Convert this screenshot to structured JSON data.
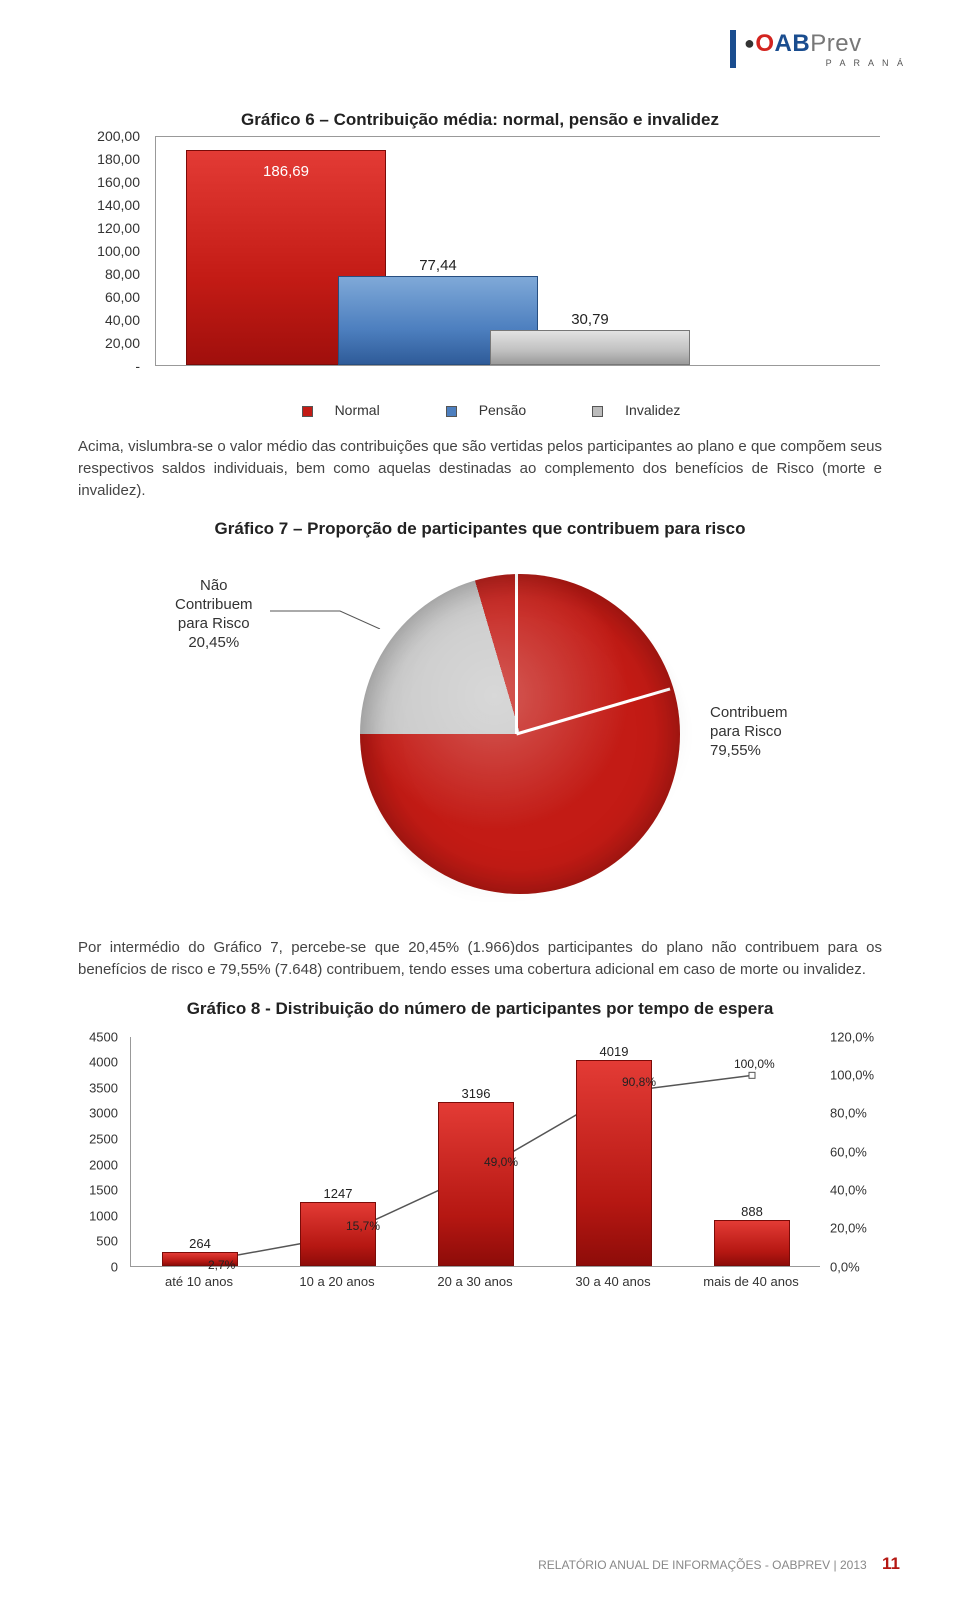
{
  "logo": {
    "brand_o": "O",
    "brand_ab": "AB",
    "brand_prev": "Prev",
    "sub": "P A R A N Á"
  },
  "chart6": {
    "type": "bar",
    "title": "Gráfico 6 – Contribuição média: normal, pensão e invalidez",
    "ylim": [
      0,
      200
    ],
    "ytick_step": 20,
    "y_ticks": [
      "200,00",
      "180,00",
      "160,00",
      "140,00",
      "120,00",
      "100,00",
      "80,00",
      "60,00",
      "40,00",
      "20,00",
      "-"
    ],
    "bars": [
      {
        "label": "Normal",
        "value": 186.69,
        "value_label": "186,69",
        "color": "#c31b15",
        "cls": "bar-red"
      },
      {
        "label": "Pensão",
        "value": 77.44,
        "value_label": "77,44",
        "color": "#4d7fbf",
        "cls": "bar-blue"
      },
      {
        "label": "Invalidez",
        "value": 30.79,
        "value_label": "30,79",
        "color": "#bcbcbc",
        "cls": "bar-grey"
      }
    ],
    "legend": [
      {
        "swatch": "lg-red",
        "label": "Normal"
      },
      {
        "swatch": "lg-blue",
        "label": "Pensão"
      },
      {
        "swatch": "lg-grey",
        "label": "Invalidez"
      }
    ]
  },
  "para1": "Acima, vislumbra-se o valor médio das contribuições que são vertidas pelos participantes ao plano e que compõem seus respectivos saldos individuais, bem como aquelas destinadas ao complemento dos benefícios de Risco (morte e invalidez).",
  "chart7": {
    "type": "pie",
    "title": "Gráfico 7 – Proporção de participantes que contribuem para risco",
    "slices": [
      {
        "name": "Não Contribuem para Risco",
        "pct_label": "20,45%",
        "pct": 20.45,
        "color": "#c9c9c9"
      },
      {
        "name": "Contribuem para Risco",
        "pct_label": "79,55%",
        "pct": 79.55,
        "color": "#c31b15"
      }
    ],
    "label_left_lines": [
      "Não",
      "Contribuem",
      "para Risco",
      "20,45%"
    ],
    "label_right_lines": [
      "Contribuem",
      "para Risco",
      "79,55%"
    ]
  },
  "para2": "Por intermédio do Gráfico 7, percebe-se que 20,45% (1.966)dos participantes do plano não contribuem para os benefícios de risco e 79,55% (7.648) contribuem, tendo esses uma cobertura adicional em caso de morte ou invalidez.",
  "chart8": {
    "type": "bar+line",
    "title": "Gráfico 8 - Distribuição do número de participantes por tempo de espera",
    "y1_lim": [
      0,
      4500
    ],
    "y1_step": 500,
    "y1_ticks": [
      "4500",
      "4000",
      "3500",
      "3000",
      "2500",
      "2000",
      "1500",
      "1000",
      "500",
      "0"
    ],
    "y2_lim": [
      0,
      120
    ],
    "y2_step": 20,
    "y2_ticks": [
      "120,0%",
      "100,0%",
      "80,0%",
      "60,0%",
      "40,0%",
      "20,0%",
      "0,0%"
    ],
    "categories": [
      "até 10 anos",
      "10 a 20 anos",
      "20 a 30 anos",
      "30 a 40 anos",
      "mais de 40 anos"
    ],
    "bar_values": [
      264,
      1247,
      3196,
      4019,
      888
    ],
    "bar_labels": [
      "264",
      "1247",
      "3196",
      "4019",
      "888"
    ],
    "bar_color": "#c31b15",
    "line_values": [
      2.7,
      15.7,
      49.0,
      90.8,
      100.0
    ],
    "line_labels": [
      "2,7%",
      "15,7%",
      "49,0%",
      "90,8%",
      "100,0%"
    ],
    "line_color": "#555555"
  },
  "footer": {
    "text": "RELATÓRIO ANUAL DE INFORMAÇÕES - OABPREV | 2013",
    "page": "11"
  }
}
